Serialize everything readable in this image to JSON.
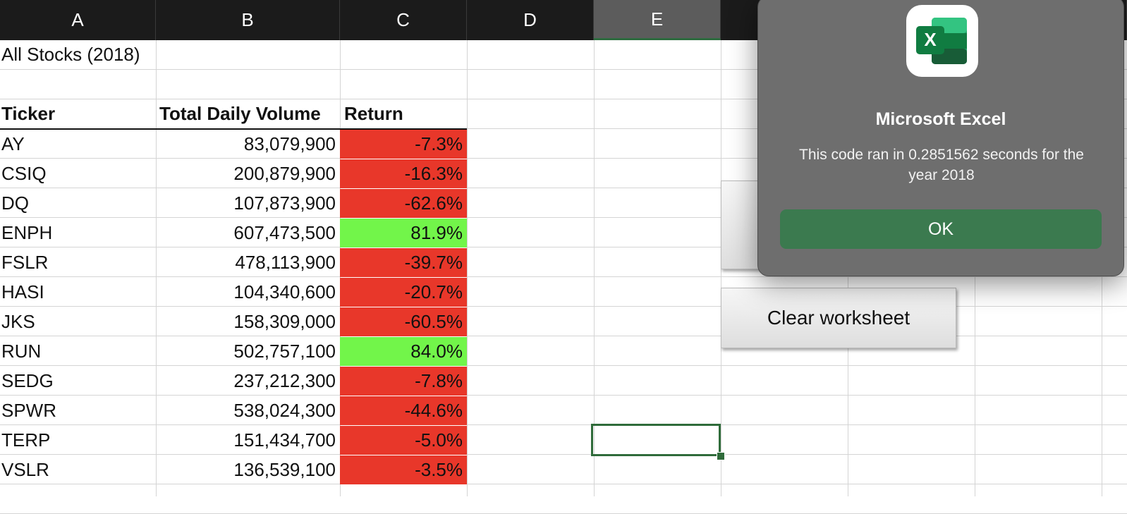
{
  "columns": [
    "A",
    "B",
    "C",
    "D",
    "E"
  ],
  "selected_column": "E",
  "sheet": {
    "title": "All Stocks (2018)",
    "headers": {
      "ticker": "Ticker",
      "volume": "Total Daily Volume",
      "return": "Return"
    },
    "rows": [
      {
        "ticker": "AY",
        "volume": "83,079,900",
        "return": "-7.3%",
        "status": "negative"
      },
      {
        "ticker": "CSIQ",
        "volume": "200,879,900",
        "return": "-16.3%",
        "status": "negative"
      },
      {
        "ticker": "DQ",
        "volume": "107,873,900",
        "return": "-62.6%",
        "status": "negative"
      },
      {
        "ticker": "ENPH",
        "volume": "607,473,500",
        "return": "81.9%",
        "status": "positive"
      },
      {
        "ticker": "FSLR",
        "volume": "478,113,900",
        "return": "-39.7%",
        "status": "negative"
      },
      {
        "ticker": "HASI",
        "volume": "104,340,600",
        "return": "-20.7%",
        "status": "negative"
      },
      {
        "ticker": "JKS",
        "volume": "158,309,000",
        "return": "-60.5%",
        "status": "negative"
      },
      {
        "ticker": "RUN",
        "volume": "502,757,100",
        "return": "84.0%",
        "status": "positive"
      },
      {
        "ticker": "SEDG",
        "volume": "237,212,300",
        "return": "-7.8%",
        "status": "negative"
      },
      {
        "ticker": "SPWR",
        "volume": "538,024,300",
        "return": "-44.6%",
        "status": "negative"
      },
      {
        "ticker": "TERP",
        "volume": "151,434,700",
        "return": "-5.0%",
        "status": "negative"
      },
      {
        "ticker": "VSLR",
        "volume": "136,539,100",
        "return": "-3.5%",
        "status": "negative"
      }
    ]
  },
  "buttons": {
    "clear_worksheet": "Clear worksheet"
  },
  "dialog": {
    "app_name": "Microsoft Excel",
    "message": "This code ran in 0.2851562 seconds for the year 2018",
    "ok_label": "OK",
    "icon": "excel-app-icon"
  },
  "colors": {
    "negative": "#e8372a",
    "positive": "#72f54a",
    "excel_green": "#3b7a4f",
    "header_bg": "#1b1b1b"
  }
}
